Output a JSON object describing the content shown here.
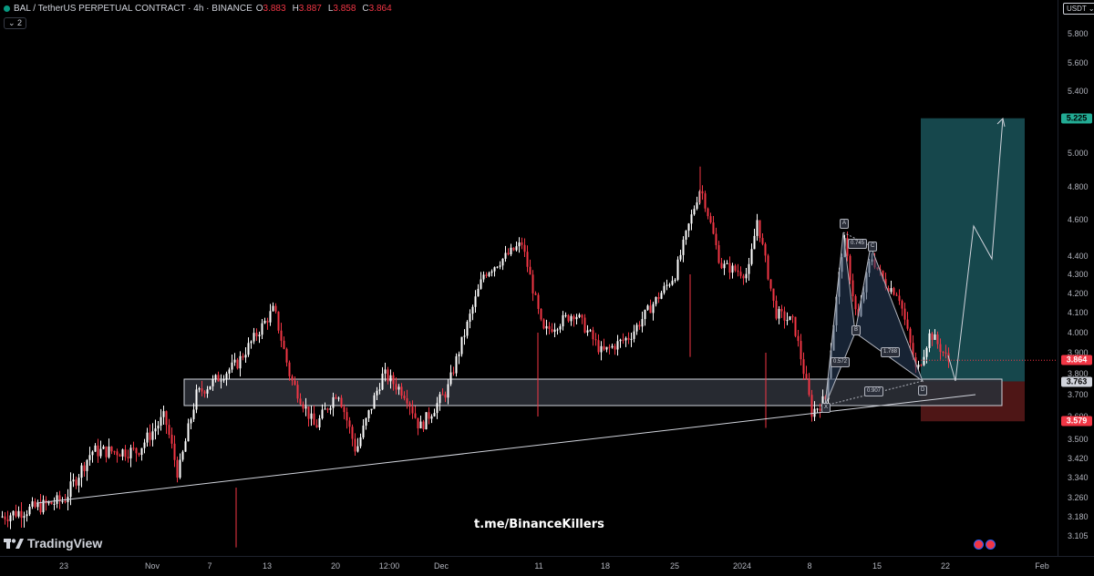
{
  "header": {
    "symbol": "BAL / TetherUS PERPETUAL CONTRACT · 4h · BINANCE",
    "ohlc": [
      {
        "key": "O",
        "value": "3.883"
      },
      {
        "key": "H",
        "value": "3.887"
      },
      {
        "key": "L",
        "value": "3.858"
      },
      {
        "key": "C",
        "value": "3.864"
      }
    ],
    "indicators_toggle": "⌄ 2"
  },
  "price_axis": {
    "currency": "USDT ⌄",
    "ticks": [
      "5.800",
      "5.600",
      "5.400",
      "5.000",
      "4.800",
      "4.600",
      "4.400",
      "4.300",
      "4.200",
      "4.100",
      "4.000",
      "3.900",
      "3.800",
      "3.700",
      "3.600",
      "3.500",
      "3.420",
      "3.340",
      "3.260",
      "3.180",
      "3.105"
    ],
    "badges": [
      {
        "label": "5.225",
        "price": 5.225,
        "bg": "#22ab94",
        "fg": "#000000"
      },
      {
        "label": "3.864",
        "price": 3.864,
        "bg": "#f23645",
        "fg": "#ffffff"
      },
      {
        "label": "3.763",
        "price": 3.763,
        "bg": "#d1d4dc",
        "fg": "#000000"
      },
      {
        "label": "3.579",
        "price": 3.579,
        "bg": "#f23645",
        "fg": "#ffffff"
      }
    ]
  },
  "time_axis": {
    "ticks": [
      "23",
      "Nov",
      "7",
      "13",
      "20",
      "12:00",
      "Dec",
      "11",
      "18",
      "25",
      "2024",
      "8",
      "15",
      "22",
      "Feb"
    ]
  },
  "pattern_labels": {
    "X": "X",
    "A": "A",
    "B": "B",
    "C": "C",
    "D": "D",
    "r1": "0.745",
    "r2": "0.572",
    "r3": "1.788",
    "r4": "0.907"
  },
  "watermark": "t.me/BinanceKillers",
  "logo_text": "TradingView",
  "colors": {
    "up": "#ffffff",
    "down": "#f23645",
    "target_zone": "#1d5f66",
    "stop_zone": "#5c1a1a",
    "support_box": "#2b2f36"
  }
}
